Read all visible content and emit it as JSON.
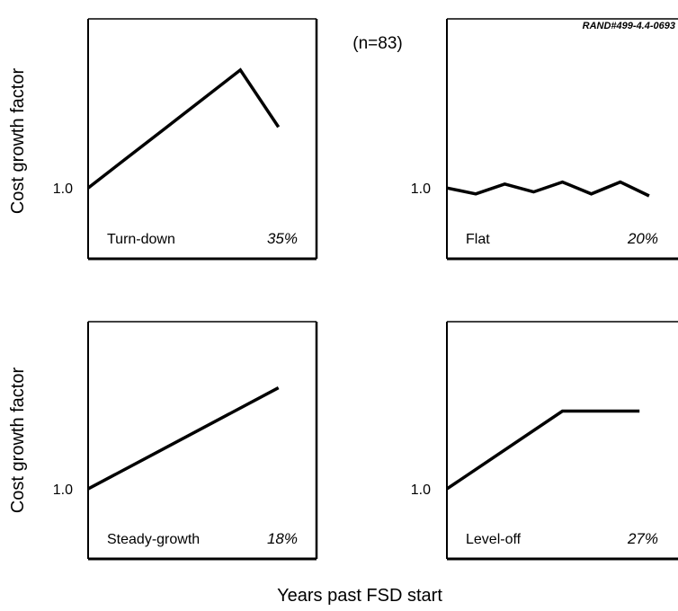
{
  "figure": {
    "ref_code": "RAND#499-4.4-0693",
    "sample_note": "(n=83)",
    "x_axis_label": "Years past FSD start"
  },
  "chart_data": [
    {
      "type": "line",
      "label": "Turn-down",
      "percent": "35%",
      "ylabel": "Cost growth factor",
      "ytick_label": "1.0",
      "x": [
        0,
        1,
        2,
        3,
        4,
        5
      ],
      "y": [
        1.0,
        1.075,
        1.15,
        1.225,
        1.3,
        1.155
      ],
      "xlim": [
        0,
        6
      ],
      "ylim": [
        0.82,
        1.43
      ]
    },
    {
      "type": "line",
      "label": "Flat",
      "percent": "20%",
      "ylabel": "",
      "ytick_label": "1.0",
      "x": [
        0,
        0.75,
        1.5,
        2.25,
        3,
        3.75,
        4.5,
        5.25
      ],
      "y": [
        1.0,
        0.985,
        1.01,
        0.99,
        1.015,
        0.985,
        1.015,
        0.98
      ],
      "xlim": [
        0,
        6
      ],
      "ylim": [
        0.82,
        1.43
      ]
    },
    {
      "type": "line",
      "label": "Steady-growth",
      "percent": "18%",
      "ylabel": "Cost growth factor",
      "ytick_label": "1.0",
      "x": [
        0,
        5
      ],
      "y": [
        1.0,
        1.26
      ],
      "xlim": [
        0,
        6
      ],
      "ylim": [
        0.82,
        1.43
      ]
    },
    {
      "type": "line",
      "label": "Level-off",
      "percent": "27%",
      "ylabel": "",
      "ytick_label": "1.0",
      "x": [
        0,
        3,
        5
      ],
      "y": [
        1.0,
        1.2,
        1.2
      ],
      "xlim": [
        0,
        6
      ],
      "ylim": [
        0.82,
        1.43
      ]
    }
  ]
}
